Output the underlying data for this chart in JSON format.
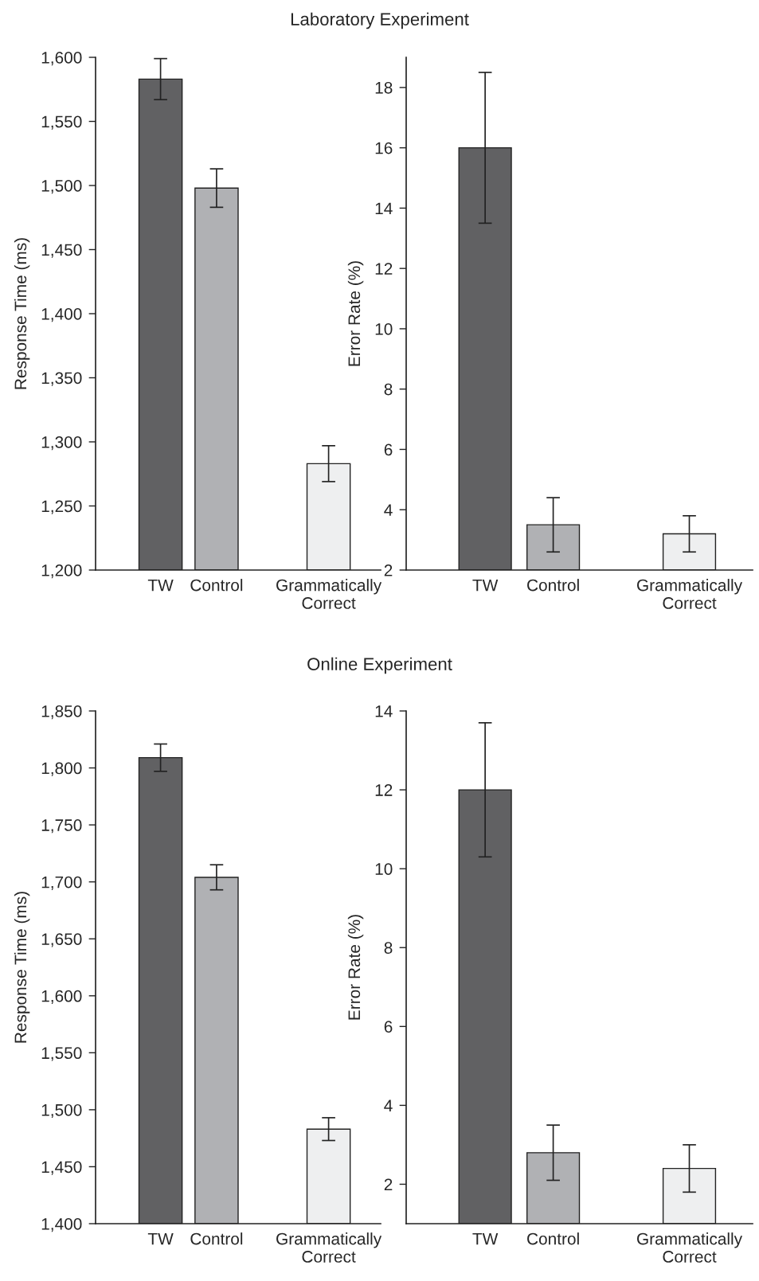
{
  "chart_data": [
    {
      "type": "bar",
      "title": "Laboratory Experiment",
      "ylabel": "Response Time (ms)",
      "categories": [
        "TW",
        "Control",
        null,
        "Grammatically\nCorrect"
      ],
      "values": [
        1583,
        1498,
        null,
        1283
      ],
      "errors": [
        16,
        15,
        null,
        14
      ],
      "colors": [
        "#616163",
        "#b0b1b4",
        "#ffffff",
        "#eeeff0"
      ],
      "ylim": [
        1200,
        1600
      ],
      "yticks": [
        {
          "value": 1200,
          "label": "1,200"
        },
        {
          "value": 1250,
          "label": "1,250"
        },
        {
          "value": 1300,
          "label": "1,300"
        },
        {
          "value": 1350,
          "label": "1,350"
        },
        {
          "value": 1400,
          "label": "1,400"
        },
        {
          "value": 1450,
          "label": "1,450"
        },
        {
          "value": 1500,
          "label": "1,500"
        },
        {
          "value": 1550,
          "label": "1,550"
        },
        {
          "value": 1600,
          "label": "1,600"
        }
      ]
    },
    {
      "type": "bar",
      "ylabel": "Error Rate (%)",
      "categories": [
        "TW",
        "Control",
        null,
        "Grammatically\nCorrect"
      ],
      "values": [
        16.0,
        3.5,
        null,
        3.2
      ],
      "errors": [
        2.5,
        0.9,
        null,
        0.6
      ],
      "colors": [
        "#616163",
        "#b0b1b4",
        "#ffffff",
        "#eeeff0"
      ],
      "ylim": [
        2,
        19
      ],
      "yticks": [
        2,
        4,
        6,
        8,
        10,
        12,
        14,
        16,
        18
      ]
    },
    {
      "type": "bar",
      "title": "Online Experiment",
      "ylabel": "Response Time (ms)",
      "categories": [
        "TW",
        "Control",
        null,
        "Grammatically\nCorrect"
      ],
      "values": [
        1809,
        1704,
        null,
        1483
      ],
      "errors": [
        12,
        11,
        null,
        10
      ],
      "colors": [
        "#616163",
        "#b0b1b4",
        "#ffffff",
        "#eeeff0"
      ],
      "ylim": [
        1400,
        1850
      ],
      "yticks": [
        {
          "value": 1400,
          "label": "1,400"
        },
        {
          "value": 1450,
          "label": "1,450"
        },
        {
          "value": 1500,
          "label": "1,500"
        },
        {
          "value": 1550,
          "label": "1,550"
        },
        {
          "value": 1600,
          "label": "1,600"
        },
        {
          "value": 1650,
          "label": "1,650"
        },
        {
          "value": 1700,
          "label": "1,700"
        },
        {
          "value": 1750,
          "label": "1,750"
        },
        {
          "value": 1800,
          "label": "1,800"
        },
        {
          "value": 1850,
          "label": "1,850"
        }
      ]
    },
    {
      "type": "bar",
      "ylabel": "Error Rate (%)",
      "categories": [
        "TW",
        "Control",
        null,
        "Grammatically\nCorrect"
      ],
      "values": [
        12.0,
        2.8,
        null,
        2.4
      ],
      "errors": [
        1.7,
        0.7,
        null,
        0.6
      ],
      "colors": [
        "#616163",
        "#b0b1b4",
        "#ffffff",
        "#eeeff0"
      ],
      "ylim": [
        1,
        14
      ],
      "yticks": [
        2,
        4,
        6,
        8,
        10,
        12,
        14
      ]
    }
  ]
}
